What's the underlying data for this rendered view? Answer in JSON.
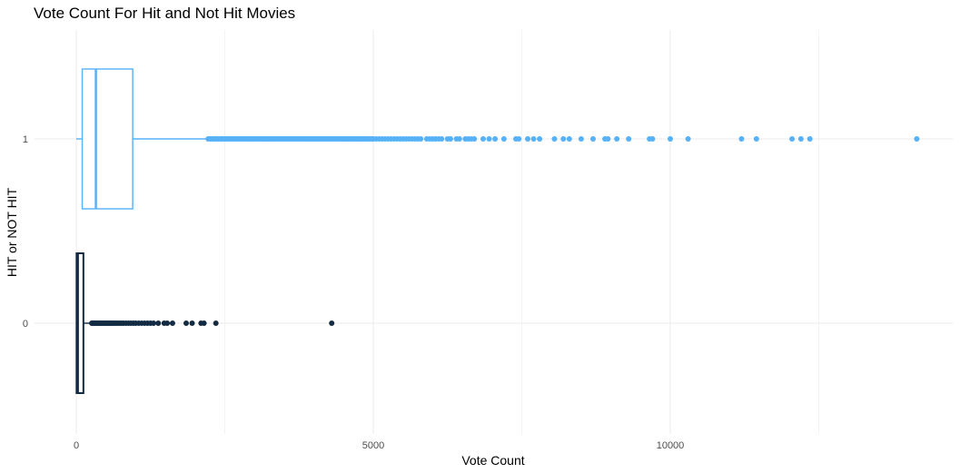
{
  "chart_data": {
    "type": "boxplot",
    "orientation": "horizontal",
    "title": "Vote Count For Hit and Not Hit Movies",
    "xlabel": "Vote Count",
    "ylabel": "HIT or NOT HIT",
    "xlim": [
      -200,
      14800
    ],
    "x_ticks": [
      0,
      5000,
      10000
    ],
    "x_tick_labels": [
      "0",
      "5000",
      "10000"
    ],
    "grid": true,
    "legend": "none",
    "categories": [
      "0",
      "1"
    ],
    "series": [
      {
        "category": "0",
        "color": "#132B43",
        "box": {
          "min": 0,
          "q1": 5,
          "median": 25,
          "q3": 120,
          "max": 250
        },
        "outliers": [
          260,
          280,
          300,
          320,
          340,
          360,
          380,
          400,
          420,
          440,
          460,
          480,
          500,
          520,
          540,
          560,
          580,
          600,
          620,
          650,
          680,
          710,
          740,
          770,
          800,
          840,
          880,
          920,
          960,
          1000,
          1050,
          1100,
          1150,
          1200,
          1250,
          1300,
          1380,
          1480,
          1530,
          1620,
          1850,
          1950,
          2100,
          2150,
          2350,
          4300
        ]
      },
      {
        "category": "1",
        "color": "#56B1F7",
        "box": {
          "min": 0,
          "q1": 100,
          "median": 330,
          "q3": 950,
          "max": 2200
        },
        "outliers": [
          2220,
          2250,
          2280,
          2310,
          2340,
          2370,
          2400,
          2430,
          2460,
          2490,
          2520,
          2550,
          2580,
          2610,
          2640,
          2670,
          2700,
          2730,
          2760,
          2790,
          2820,
          2850,
          2880,
          2910,
          2940,
          2970,
          3000,
          3030,
          3060,
          3090,
          3120,
          3150,
          3180,
          3210,
          3240,
          3270,
          3300,
          3330,
          3360,
          3390,
          3420,
          3450,
          3480,
          3510,
          3540,
          3570,
          3600,
          3630,
          3660,
          3690,
          3720,
          3750,
          3780,
          3810,
          3840,
          3870,
          3900,
          3930,
          3960,
          3990,
          4020,
          4050,
          4080,
          4110,
          4140,
          4170,
          4200,
          4230,
          4260,
          4290,
          4320,
          4350,
          4380,
          4410,
          4440,
          4470,
          4500,
          4530,
          4560,
          4590,
          4620,
          4650,
          4680,
          4710,
          4740,
          4770,
          4800,
          4830,
          4860,
          4890,
          4920,
          4950,
          4980,
          5000,
          5050,
          5100,
          5150,
          5200,
          5250,
          5300,
          5350,
          5400,
          5450,
          5500,
          5550,
          5600,
          5650,
          5700,
          5750,
          5800,
          5900,
          5950,
          6000,
          6050,
          6100,
          6150,
          6250,
          6300,
          6400,
          6450,
          6550,
          6600,
          6650,
          6700,
          6850,
          6950,
          7050,
          7200,
          7400,
          7450,
          7600,
          7700,
          7800,
          8050,
          8200,
          8300,
          8500,
          8700,
          8900,
          8950,
          9100,
          9300,
          9650,
          9700,
          10000,
          10300,
          11200,
          11450,
          12050,
          12200,
          12350,
          14150
        ]
      }
    ]
  }
}
